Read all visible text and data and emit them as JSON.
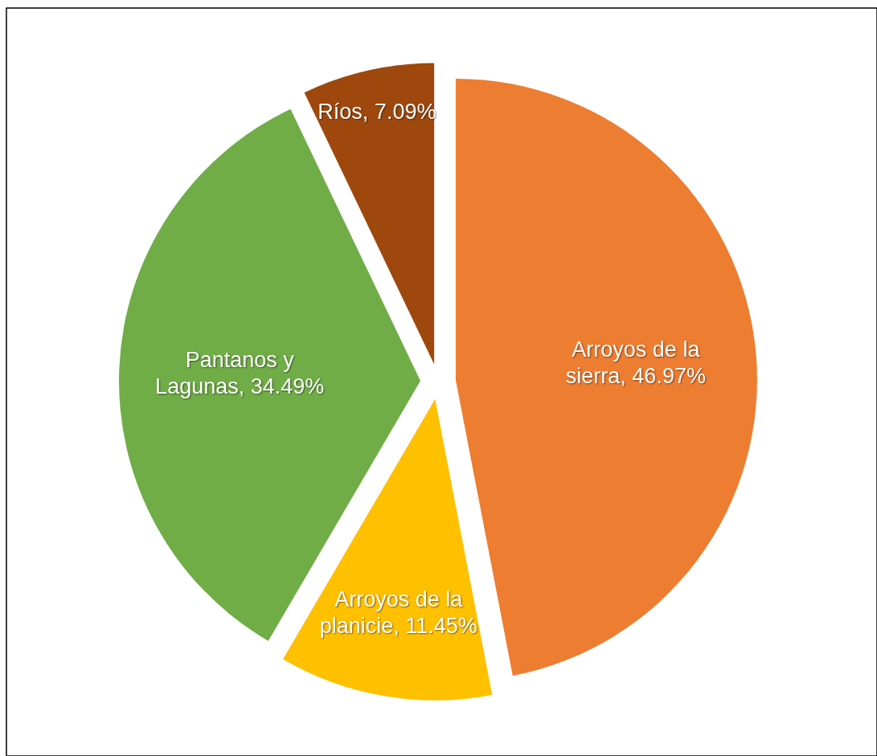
{
  "chart_data": {
    "type": "pie",
    "categories": [
      "Arroyos de la sierra",
      "Arroyos de la planicie",
      "Pantanos y Lagunas",
      "Ríos"
    ],
    "values": [
      46.97,
      11.45,
      34.49,
      7.09
    ],
    "value_labels": [
      "46.97%",
      "11.45%",
      "34.49%",
      "7.09%"
    ],
    "colors": [
      "#ed7d31",
      "#ffc000",
      "#70ad47",
      "#9e480e"
    ]
  }
}
